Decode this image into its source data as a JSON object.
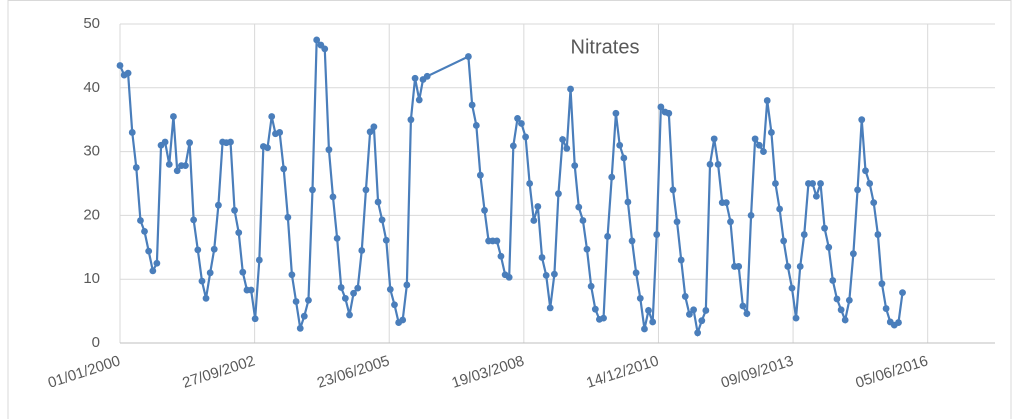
{
  "chart_data": {
    "type": "line",
    "title": "Nitrates",
    "x": [
      "01/01/2000",
      "01/02/2000",
      "01/03/2000",
      "01/04/2000",
      "01/05/2000",
      "01/06/2000",
      "01/07/2000",
      "01/08/2000",
      "01/09/2000",
      "01/10/2000",
      "01/11/2000",
      "01/12/2000",
      "01/01/2001",
      "01/02/2001",
      "01/03/2001",
      "01/04/2001",
      "01/05/2001",
      "01/06/2001",
      "01/07/2001",
      "01/08/2001",
      "01/09/2001",
      "01/10/2001",
      "01/11/2001",
      "01/12/2001",
      "01/01/2002",
      "01/02/2002",
      "01/03/2002",
      "01/04/2002",
      "01/05/2002",
      "01/06/2002",
      "01/07/2002",
      "01/08/2002",
      "01/09/2002",
      "01/10/2002",
      "01/11/2002",
      "01/12/2002",
      "01/01/2003",
      "01/02/2003",
      "01/03/2003",
      "01/04/2003",
      "01/05/2003",
      "01/06/2003",
      "01/07/2003",
      "01/08/2003",
      "01/09/2003",
      "01/10/2003",
      "01/11/2003",
      "01/12/2003",
      "01/01/2004",
      "01/02/2004",
      "01/03/2004",
      "01/04/2004",
      "01/05/2004",
      "01/06/2004",
      "01/07/2004",
      "01/08/2004",
      "01/09/2004",
      "01/10/2004",
      "01/11/2004",
      "01/12/2004",
      "01/01/2005",
      "01/02/2005",
      "01/03/2005",
      "01/04/2005",
      "01/05/2005",
      "01/06/2005",
      "01/07/2005",
      "01/08/2005",
      "01/09/2005",
      "01/10/2005",
      "01/11/2005",
      "01/12/2005",
      "01/01/2006",
      "01/02/2006",
      "01/03/2006",
      "01/04/2006",
      "01/02/2007",
      "01/03/2007",
      "01/04/2007",
      "01/05/2007",
      "01/06/2007",
      "01/07/2007",
      "01/08/2007",
      "01/09/2007",
      "01/10/2007",
      "01/11/2007",
      "01/12/2007",
      "01/01/2008",
      "01/02/2008",
      "01/03/2008",
      "01/04/2008",
      "01/05/2008",
      "01/06/2008",
      "01/07/2008",
      "01/08/2008",
      "01/09/2008",
      "01/10/2008",
      "01/11/2008",
      "01/12/2008",
      "01/01/2009",
      "01/02/2009",
      "01/03/2009",
      "01/04/2009",
      "01/05/2009",
      "01/06/2009",
      "01/07/2009",
      "01/08/2009",
      "01/09/2009",
      "01/10/2009",
      "01/11/2009",
      "01/12/2009",
      "01/01/2010",
      "01/02/2010",
      "01/03/2010",
      "01/04/2010",
      "01/05/2010",
      "01/06/2010",
      "01/07/2010",
      "01/08/2010",
      "01/09/2010",
      "01/10/2010",
      "01/11/2010",
      "01/12/2010",
      "01/01/2011",
      "01/02/2011",
      "01/03/2011",
      "01/04/2011",
      "01/05/2011",
      "01/06/2011",
      "01/07/2011",
      "01/08/2011",
      "01/09/2011",
      "01/10/2011",
      "01/11/2011",
      "01/12/2011",
      "01/01/2012",
      "01/02/2012",
      "01/03/2012",
      "01/04/2012",
      "01/05/2012",
      "01/06/2012",
      "01/07/2012",
      "01/08/2012",
      "01/09/2012",
      "01/10/2012",
      "01/11/2012",
      "01/12/2012",
      "01/01/2013",
      "01/02/2013",
      "01/03/2013",
      "01/04/2013",
      "01/05/2013",
      "01/06/2013",
      "01/07/2013",
      "01/08/2013",
      "01/09/2013",
      "01/10/2013",
      "01/11/2013",
      "01/12/2013",
      "01/01/2014",
      "01/02/2014",
      "01/03/2014",
      "01/04/2014",
      "01/05/2014",
      "01/06/2014",
      "01/07/2014",
      "01/08/2014",
      "01/09/2014",
      "01/10/2014",
      "01/11/2014",
      "01/12/2014",
      "01/01/2015",
      "01/02/2015",
      "01/03/2015",
      "01/04/2015",
      "01/05/2015",
      "01/06/2015",
      "01/07/2015",
      "01/08/2015",
      "01/09/2015",
      "01/10/2015",
      "01/11/2015",
      "01/12/2015"
    ],
    "values": [
      43.5,
      42,
      42.3,
      33,
      27.5,
      19.2,
      17.5,
      14.4,
      11.3,
      12.5,
      31,
      31.5,
      28,
      35.5,
      27,
      27.8,
      27.8,
      31.4,
      19.3,
      14.6,
      9.7,
      7,
      11,
      14.7,
      21.6,
      31.5,
      31.4,
      31.5,
      20.8,
      17.3,
      11.1,
      8.3,
      8.3,
      3.8,
      13,
      30.8,
      30.6,
      35.5,
      32.8,
      33,
      27.3,
      19.7,
      10.7,
      6.5,
      2.3,
      4.2,
      6.7,
      24,
      47.5,
      46.7,
      46.1,
      30.3,
      22.9,
      16.4,
      8.7,
      7,
      4.4,
      7.8,
      8.6,
      14.5,
      24,
      33.1,
      33.9,
      22.1,
      19.3,
      16.1,
      8.4,
      6,
      3.2,
      3.6,
      9.1,
      35,
      41.5,
      38.1,
      41.3,
      41.8,
      44.9,
      37.3,
      34.1,
      26.3,
      20.8,
      16,
      16,
      16,
      13.6,
      10.7,
      10.3,
      30.9,
      35.2,
      34.4,
      32.3,
      25,
      19.2,
      21.4,
      13.4,
      10.6,
      5.5,
      10.8,
      23.4,
      31.9,
      30.5,
      39.8,
      27.8,
      21.3,
      19.2,
      14.7,
      8.9,
      5.3,
      3.7,
      3.9,
      16.7,
      26,
      36,
      31,
      29,
      22.1,
      16,
      11,
      7,
      2.2,
      5.1,
      3.3,
      17,
      37,
      36.2,
      36,
      24,
      19,
      13,
      7.3,
      4.5,
      5.2,
      1.6,
      3.5,
      5.1,
      28,
      32,
      28,
      22,
      22,
      19,
      12,
      12,
      5.8,
      4.6,
      20,
      32,
      31,
      30,
      38,
      33,
      25,
      21,
      16,
      12,
      8.6,
      3.9,
      12,
      17,
      25,
      25,
      23,
      25,
      18,
      15,
      9.8,
      6.9,
      5.2,
      3.6,
      6.7,
      14,
      24,
      35,
      27,
      25,
      22,
      17,
      9.3,
      5.4,
      3.3,
      2.8,
      3.2,
      7.9
    ],
    "color": "#4a7ebb",
    "xlim": [
      "01/01/2000",
      "18/10/2017"
    ],
    "xticks": [
      "01/01/2000",
      "27/09/2002",
      "23/06/2005",
      "19/03/2008",
      "14/12/2010",
      "09/09/2013",
      "05/06/2016"
    ],
    "ylim": [
      0,
      50
    ],
    "yticks": [
      0,
      10,
      20,
      30,
      40,
      50
    ],
    "grid": true
  }
}
